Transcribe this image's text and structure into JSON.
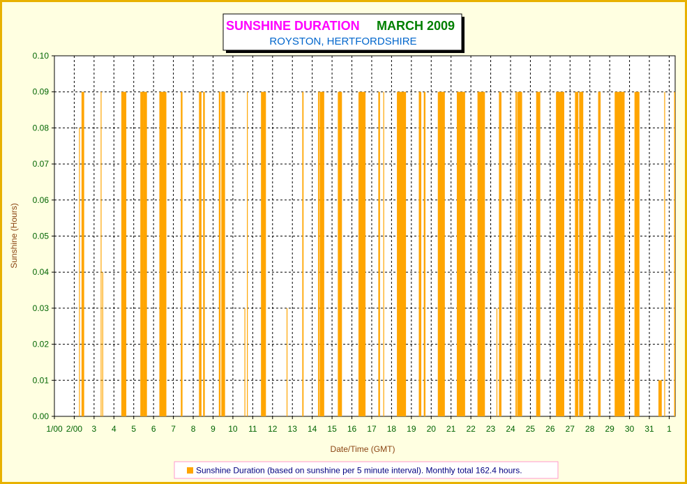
{
  "title": {
    "part1": "SUNSHINE DURATION",
    "part2": "MARCH 2009",
    "subtitle": "ROYSTON, HERTFORDSHIRE",
    "colors": {
      "part1": "#FF00FF",
      "part2": "#008000",
      "subtitle": "#0066CC"
    }
  },
  "colors": {
    "bar": "#FFA500",
    "axis_text": "#006400",
    "axis_title": "#8B4513",
    "frame": "#E8B100",
    "background": "#FFFFE1",
    "legend_border": "#FF99CC",
    "legend_text": "#000080"
  },
  "chart_data": {
    "type": "bar",
    "xlabel": "Date/Time (GMT)",
    "ylabel": "Sunshine (Hours)",
    "ylim": [
      0,
      0.1
    ],
    "yticks": [
      "0.00",
      "0.01",
      "0.02",
      "0.03",
      "0.04",
      "0.05",
      "0.06",
      "0.07",
      "0.08",
      "0.09",
      "0.10"
    ],
    "xticks": [
      "1/00",
      "2/00",
      "3",
      "4",
      "5",
      "6",
      "7",
      "8",
      "9",
      "10",
      "11",
      "12",
      "13",
      "14",
      "15",
      "16",
      "17",
      "18",
      "19",
      "20",
      "21",
      "22",
      "23",
      "24",
      "25",
      "26",
      "27",
      "28",
      "29",
      "30",
      "31",
      "1"
    ],
    "x_range_days": [
      1,
      32.3
    ],
    "grid": true,
    "legend": {
      "label": "Sunshine Duration (based on sunshine per 5 minute interval). Monthly total 162.4 hours.",
      "placement": "bottom"
    },
    "series": [
      {
        "name": "Sunshine Duration (based on sunshine per 5 minute interval). Monthly total 162.4 hours.",
        "segments": [
          {
            "start": "2/05:50",
            "end": "2/06:10",
            "value": 0.08
          },
          {
            "start": "2/08:50",
            "end": "2/09:30",
            "value": 0.09
          },
          {
            "start": "2/09:30",
            "end": "2/12:00",
            "value": 0.09
          },
          {
            "start": "3/08:00",
            "end": "3/09:00",
            "value": 0.09
          },
          {
            "start": "3/10:00",
            "end": "3/10:20",
            "value": 0.04
          },
          {
            "start": "4/09:00",
            "end": "4/12:00",
            "value": 0.09
          },
          {
            "start": "4/12:00",
            "end": "4/15:00",
            "value": 0.09
          },
          {
            "start": "5/08:00",
            "end": "5/12:00",
            "value": 0.09
          },
          {
            "start": "5/12:00",
            "end": "5/16:00",
            "value": 0.09
          },
          {
            "start": "6/07:00",
            "end": "6/15:30",
            "value": 0.09
          },
          {
            "start": "7/09:00",
            "end": "7/11:00",
            "value": 0.09
          },
          {
            "start": "8/07:00",
            "end": "8/10:00",
            "value": 0.09
          },
          {
            "start": "8/12:00",
            "end": "8/14:00",
            "value": 0.09
          },
          {
            "start": "9/07:00",
            "end": "9/09:00",
            "value": 0.09
          },
          {
            "start": "9/10:00",
            "end": "9/14:30",
            "value": 0.09
          },
          {
            "start": "10/14:00",
            "end": "10/14:30",
            "value": 0.03
          },
          {
            "start": "10/17:00",
            "end": "10/18:00",
            "value": 0.09
          },
          {
            "start": "11/10:00",
            "end": "11/16:00",
            "value": 0.09
          },
          {
            "start": "12/17:00",
            "end": "12/17:30",
            "value": 0.03
          },
          {
            "start": "13/12:00",
            "end": "13/13:30",
            "value": 0.09
          },
          {
            "start": "14/07:00",
            "end": "14/08:30",
            "value": 0.09
          },
          {
            "start": "14/09:00",
            "end": "14/14:30",
            "value": 0.09
          },
          {
            "start": "15/07:00",
            "end": "15/12:00",
            "value": 0.09
          },
          {
            "start": "16/08:00",
            "end": "16/16:30",
            "value": 0.09
          },
          {
            "start": "17/08:00",
            "end": "17/10:00",
            "value": 0.09
          },
          {
            "start": "17/14:00",
            "end": "17/15:00",
            "value": 0.09
          },
          {
            "start": "18/06:30",
            "end": "18/17:30",
            "value": 0.09
          },
          {
            "start": "19/09:00",
            "end": "19/12:00",
            "value": 0.09
          },
          {
            "start": "19/15:00",
            "end": "19/17:00",
            "value": 0.09
          },
          {
            "start": "20/08:00",
            "end": "20/16:30",
            "value": 0.09
          },
          {
            "start": "21/07:00",
            "end": "21/17:00",
            "value": 0.09
          },
          {
            "start": "22/08:00",
            "end": "22/17:00",
            "value": 0.09
          },
          {
            "start": "23/07:00",
            "end": "23/08:00",
            "value": 0.03
          },
          {
            "start": "23/10:00",
            "end": "23/13:00",
            "value": 0.09
          },
          {
            "start": "24/06:00",
            "end": "24/07:30",
            "value": 0.09
          },
          {
            "start": "24/08:00",
            "end": "24/14:00",
            "value": 0.09
          },
          {
            "start": "25/07:00",
            "end": "25/12:00",
            "value": 0.09
          },
          {
            "start": "26/07:00",
            "end": "26/17:00",
            "value": 0.09
          },
          {
            "start": "27/06:00",
            "end": "27/10:00",
            "value": 0.09
          },
          {
            "start": "27/11:00",
            "end": "27/16:00",
            "value": 0.09
          },
          {
            "start": "28/10:00",
            "end": "28/13:00",
            "value": 0.09
          },
          {
            "start": "29/06:00",
            "end": "29/18:00",
            "value": 0.09
          },
          {
            "start": "30/06:00",
            "end": "30/12:00",
            "value": 0.09
          },
          {
            "start": "31/11:00",
            "end": "31/15:00",
            "value": 0.01
          },
          {
            "start": "31/18:00",
            "end": "31/19:00",
            "value": 0.09
          },
          {
            "start": "1/06:00",
            "end": "1/08:00",
            "value": 0.09
          }
        ]
      }
    ]
  }
}
